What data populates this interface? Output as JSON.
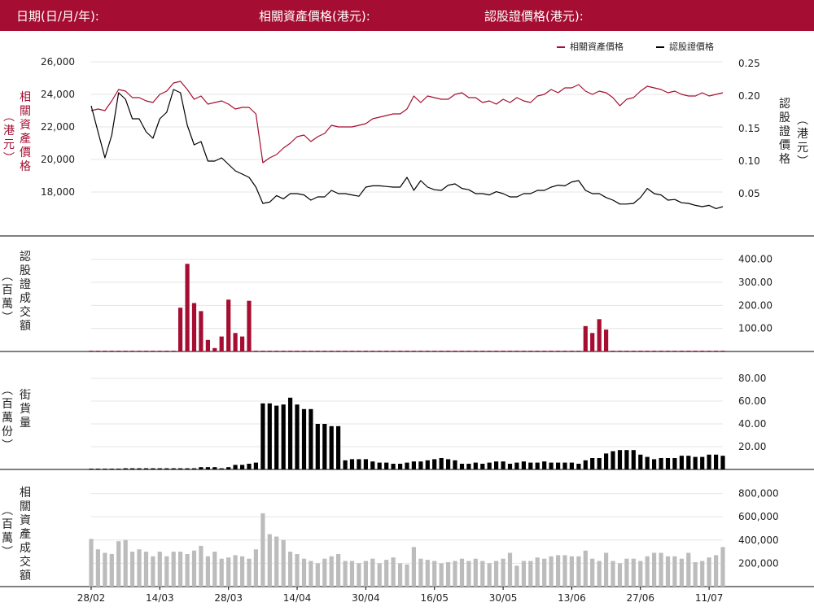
{
  "header": {
    "date_label": "日期(日/月/年):",
    "underlying_label": "相關資產價格(港元):",
    "warrant_label": "認股證價格(港元):"
  },
  "colors": {
    "header_bg": "#a50e32",
    "underlying": "#a50e32",
    "warrant": "#000000",
    "turnover_underlying": "#bcbcbc"
  },
  "legend": {
    "underlying": "相關資產價格",
    "warrant": "認股證價格"
  },
  "axis_titles": {
    "price_left": "相關資產價格",
    "price_left_unit": "（港元）",
    "price_right": "認股證價格",
    "price_right_unit": "（港元）",
    "warrant_turnover": "認股證成交額",
    "warrant_turnover_unit": "（百萬）",
    "outstanding": "街貨量",
    "outstanding_unit": "（百萬份）",
    "underlying_turnover": "相關資產成交額",
    "underlying_turnover_unit": "（百萬）"
  },
  "chart_data": [
    {
      "type": "line",
      "title": "",
      "x_tick_labels": [
        "28/02",
        "14/03",
        "28/03",
        "14/04",
        "30/04",
        "16/05",
        "30/05",
        "13/06",
        "27/06",
        "11/07"
      ],
      "y_left_ticks": [
        "26,000",
        "24,000",
        "22,000",
        "20,000",
        "18,000"
      ],
      "y_right_ticks": [
        "0.25",
        "0.20",
        "0.15",
        "0.10",
        "0.05"
      ],
      "ylim_left": [
        16500,
        26500
      ],
      "ylim_right": [
        0.015,
        0.265
      ],
      "series": [
        {
          "name": "相關資產價格",
          "axis": "left",
          "values": [
            23000,
            23100,
            23000,
            23600,
            24300,
            24200,
            23800,
            23800,
            23600,
            23500,
            24000,
            24200,
            24700,
            24800,
            24300,
            23700,
            23900,
            23400,
            23500,
            23600,
            23400,
            23100,
            23200,
            23200,
            22800,
            19800,
            20100,
            20300,
            20700,
            21000,
            21400,
            21500,
            21100,
            21400,
            21600,
            22100,
            22000,
            22000,
            22000,
            22100,
            22200,
            22500,
            22600,
            22700,
            22800,
            22800,
            23100,
            23900,
            23500,
            23900,
            23800,
            23700,
            23700,
            24000,
            24100,
            23800,
            23800,
            23500,
            23600,
            23400,
            23700,
            23500,
            23800,
            23600,
            23500,
            23900,
            24000,
            24300,
            24100,
            24400,
            24400,
            24600,
            24200,
            24000,
            24200,
            24100,
            23800,
            23300,
            23700,
            23800,
            24200,
            24500,
            24400,
            24300,
            24100,
            24200,
            24000,
            23900,
            23900,
            24100,
            23900,
            24000,
            24100
          ]
        },
        {
          "name": "認股證價格",
          "axis": "right",
          "values": [
            0.185,
            0.145,
            0.105,
            0.14,
            0.205,
            0.195,
            0.165,
            0.165,
            0.145,
            0.135,
            0.165,
            0.175,
            0.21,
            0.205,
            0.155,
            0.125,
            0.13,
            0.1,
            0.1,
            0.105,
            0.095,
            0.085,
            0.08,
            0.075,
            0.06,
            0.035,
            0.037,
            0.047,
            0.042,
            0.05,
            0.05,
            0.048,
            0.04,
            0.045,
            0.045,
            0.055,
            0.05,
            0.05,
            0.048,
            0.046,
            0.06,
            0.062,
            0.062,
            0.061,
            0.06,
            0.06,
            0.075,
            0.055,
            0.07,
            0.06,
            0.056,
            0.055,
            0.063,
            0.065,
            0.058,
            0.056,
            0.05,
            0.05,
            0.048,
            0.053,
            0.05,
            0.045,
            0.045,
            0.05,
            0.05,
            0.055,
            0.055,
            0.06,
            0.063,
            0.062,
            0.068,
            0.07,
            0.055,
            0.05,
            0.05,
            0.044,
            0.04,
            0.034,
            0.034,
            0.035,
            0.044,
            0.058,
            0.05,
            0.048,
            0.04,
            0.041,
            0.036,
            0.035,
            0.032,
            0.03,
            0.032,
            0.027,
            0.03
          ]
        }
      ]
    },
    {
      "type": "bar",
      "title": "",
      "y_ticks": [
        "400.00",
        "300.00",
        "200.00",
        "100.00"
      ],
      "ylim": [
        0,
        420
      ],
      "values": [
        0,
        0,
        1,
        0,
        0,
        1,
        1,
        1,
        0,
        0,
        0,
        0,
        1,
        190,
        380,
        210,
        175,
        50,
        15,
        65,
        225,
        80,
        65,
        220,
        0,
        0,
        0,
        0,
        0,
        0,
        0,
        0,
        0,
        0,
        0,
        0,
        0,
        0,
        0,
        0,
        0,
        0,
        0,
        0,
        0,
        0,
        0,
        0,
        0,
        0,
        0,
        0,
        0,
        0,
        0,
        0,
        0,
        0,
        0,
        0,
        0,
        0,
        0,
        0,
        0,
        0,
        0,
        0,
        0,
        0,
        0,
        0,
        110,
        80,
        140,
        95,
        0,
        0,
        0,
        0,
        0,
        0,
        0,
        0,
        0,
        0,
        0,
        0,
        0,
        0,
        0,
        0,
        0
      ]
    },
    {
      "type": "bar",
      "title": "",
      "y_ticks": [
        "80.00",
        "60.00",
        "40.00",
        "20.00"
      ],
      "ylim": [
        0,
        85
      ],
      "values": [
        0,
        0,
        0,
        0,
        0,
        1,
        1,
        1,
        1,
        1,
        1,
        1,
        1,
        1,
        1,
        1,
        2,
        2,
        2,
        1,
        2,
        4,
        4,
        5,
        6,
        58,
        58,
        56,
        57,
        63,
        57,
        53,
        53,
        40,
        40,
        38,
        38,
        8,
        9,
        9,
        9,
        7,
        6,
        6,
        5,
        5,
        6,
        7,
        7,
        8,
        9,
        10,
        9,
        8,
        5,
        5,
        6,
        5,
        6,
        7,
        7,
        5,
        6,
        7,
        6,
        6,
        7,
        6,
        6,
        6,
        6,
        5,
        8,
        10,
        10,
        14,
        16,
        17,
        17,
        17,
        13,
        11,
        9,
        10,
        10,
        10,
        12,
        12,
        11,
        11,
        13,
        13,
        12
      ]
    },
    {
      "type": "bar",
      "title": "",
      "y_ticks": [
        "800,000",
        "600,000",
        "400,000",
        "200,000"
      ],
      "ylim": [
        0,
        860000
      ],
      "values": [
        410000,
        320000,
        290000,
        280000,
        390000,
        400000,
        300000,
        320000,
        300000,
        260000,
        300000,
        260000,
        300000,
        300000,
        280000,
        310000,
        350000,
        260000,
        300000,
        240000,
        250000,
        270000,
        260000,
        240000,
        320000,
        630000,
        450000,
        430000,
        400000,
        300000,
        280000,
        240000,
        220000,
        200000,
        240000,
        260000,
        280000,
        220000,
        220000,
        200000,
        220000,
        240000,
        200000,
        230000,
        250000,
        200000,
        190000,
        340000,
        240000,
        230000,
        220000,
        200000,
        210000,
        220000,
        240000,
        220000,
        240000,
        220000,
        200000,
        220000,
        240000,
        290000,
        180000,
        220000,
        220000,
        250000,
        240000,
        260000,
        270000,
        270000,
        260000,
        260000,
        310000,
        240000,
        220000,
        290000,
        220000,
        200000,
        240000,
        240000,
        220000,
        260000,
        290000,
        290000,
        260000,
        260000,
        240000,
        290000,
        210000,
        220000,
        250000,
        270000,
        340000
      ]
    }
  ]
}
